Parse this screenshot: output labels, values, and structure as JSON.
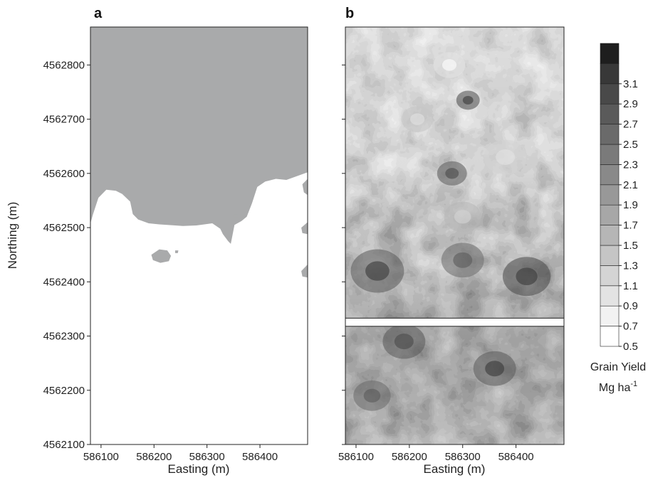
{
  "chart_data": [
    {
      "type": "heatmap",
      "panel_label": "a",
      "xlabel": "Easting (m)",
      "ylabel": "Northing (m)",
      "xticks": [
        586100,
        586200,
        586300,
        586400
      ],
      "yticks": [
        4562100,
        4562200,
        4562300,
        4562400,
        4562500,
        4562600,
        4562700,
        4562800
      ],
      "xlim": [
        586080,
        586490
      ],
      "ylim": [
        4562100,
        4562870
      ],
      "colors": {
        "region": "#a9aaab",
        "background": "#ffffff"
      },
      "region_boundary": [
        [
          586080,
          4562508
        ],
        [
          586085,
          4562525
        ],
        [
          586095,
          4562555
        ],
        [
          586110,
          4562570
        ],
        [
          586128,
          4562568
        ],
        [
          586140,
          4562562
        ],
        [
          586155,
          4562548
        ],
        [
          586160,
          4562525
        ],
        [
          586170,
          4562515
        ],
        [
          586190,
          4562508
        ],
        [
          586210,
          4562506
        ],
        [
          586240,
          4562504
        ],
        [
          586255,
          4562503
        ],
        [
          586280,
          4562504
        ],
        [
          586310,
          4562508
        ],
        [
          586325,
          4562498
        ],
        [
          586330,
          4562488
        ],
        [
          586340,
          4562475
        ],
        [
          586345,
          4562470
        ],
        [
          586352,
          4562505
        ],
        [
          586365,
          4562512
        ],
        [
          586375,
          4562520
        ],
        [
          586385,
          4562545
        ],
        [
          586395,
          4562575
        ],
        [
          586410,
          4562585
        ],
        [
          586430,
          4562590
        ],
        [
          586450,
          4562588
        ],
        [
          586470,
          4562595
        ],
        [
          586490,
          4562602
        ],
        [
          586490,
          4562870
        ],
        [
          586080,
          4562870
        ]
      ],
      "patches": [
        [
          [
            586195,
            4562450
          ],
          [
            586210,
            4562460
          ],
          [
            586225,
            4562458
          ],
          [
            586232,
            4562448
          ],
          [
            586228,
            4562438
          ],
          [
            586212,
            4562435
          ],
          [
            586198,
            4562440
          ]
        ],
        [
          [
            586240,
            4562458
          ],
          [
            586246,
            4562458
          ],
          [
            586245,
            4562453
          ],
          [
            586240,
            4562453
          ]
        ],
        [
          [
            586350,
            4562524
          ],
          [
            586358,
            4562524
          ],
          [
            586358,
            4562519
          ],
          [
            586350,
            4562519
          ]
        ],
        [
          [
            586480,
            4562580
          ],
          [
            586490,
            4562590
          ],
          [
            586490,
            4562560
          ],
          [
            586483,
            4562565
          ]
        ],
        [
          [
            586478,
            4562500
          ],
          [
            586490,
            4562510
          ],
          [
            586490,
            4562488
          ],
          [
            586480,
            4562490
          ]
        ],
        [
          [
            586478,
            4562420
          ],
          [
            586490,
            4562432
          ],
          [
            586490,
            4562408
          ],
          [
            586480,
            4562410
          ]
        ]
      ]
    },
    {
      "type": "heatmap",
      "panel_label": "b",
      "xlabel": "Easting (m)",
      "xticks": [
        586100,
        586200,
        586300,
        586400
      ],
      "yticks": [
        4562100,
        4562200,
        4562300,
        4562400,
        4562500,
        4562600,
        4562700,
        4562800
      ],
      "xlim": [
        586080,
        586490
      ],
      "ylim": [
        4562100,
        4562870
      ],
      "gap_band": [
        4562318,
        4562333
      ],
      "color_scale": {
        "title": "Grain Yield",
        "unit_base": "Mg ha",
        "unit_exponent": "-1",
        "levels": [
          0.5,
          0.7,
          0.9,
          1.1,
          1.3,
          1.5,
          1.7,
          1.9,
          2.1,
          2.3,
          2.5,
          2.7,
          2.9,
          3.1
        ],
        "colors": [
          "#ffffff",
          "#f2f2f2",
          "#e3e3e3",
          "#d4d4d4",
          "#c5c5c5",
          "#b6b6b6",
          "#a7a7a7",
          "#989898",
          "#898989",
          "#7a7a7a",
          "#6a6a6a",
          "#5a5a5a",
          "#494949",
          "#383838",
          "#1e1e1e"
        ]
      },
      "hotspots": [
        {
          "x": 586310,
          "y": 4562735,
          "r": 22,
          "v": 2.7
        },
        {
          "x": 586280,
          "y": 4562600,
          "r": 28,
          "v": 2.5
        },
        {
          "x": 586140,
          "y": 4562420,
          "r": 50,
          "v": 2.6
        },
        {
          "x": 586300,
          "y": 4562440,
          "r": 40,
          "v": 2.4
        },
        {
          "x": 586420,
          "y": 4562410,
          "r": 45,
          "v": 2.7
        },
        {
          "x": 586360,
          "y": 4562240,
          "r": 40,
          "v": 2.6
        },
        {
          "x": 586190,
          "y": 4562290,
          "r": 40,
          "v": 2.5
        },
        {
          "x": 586130,
          "y": 4562190,
          "r": 35,
          "v": 2.4
        },
        {
          "x": 586275,
          "y": 4562800,
          "r": 30,
          "v": 0.7
        },
        {
          "x": 586300,
          "y": 4562520,
          "r": 35,
          "v": 1.3
        },
        {
          "x": 586380,
          "y": 4562630,
          "r": 40,
          "v": 1.0
        },
        {
          "x": 586215,
          "y": 4562700,
          "r": 30,
          "v": 1.1
        }
      ]
    }
  ]
}
